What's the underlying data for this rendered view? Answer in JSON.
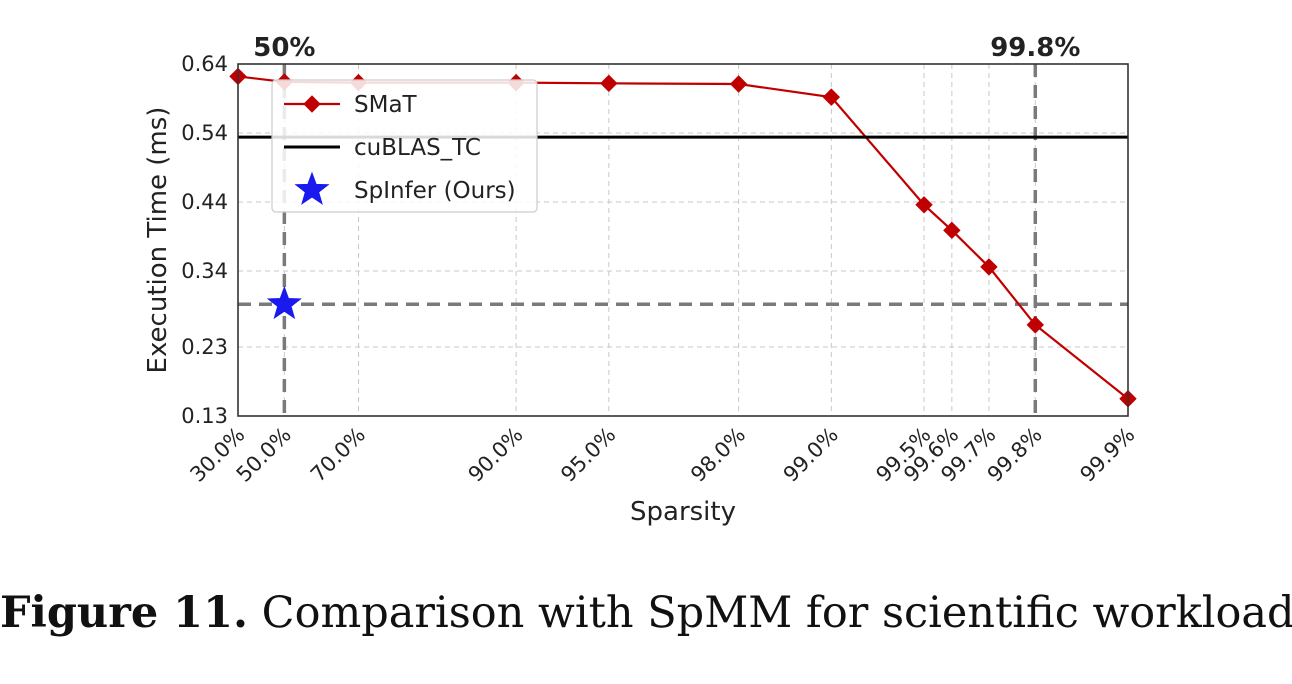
{
  "chart_data": {
    "type": "line",
    "categories": [
      "30.0%",
      "50.0%",
      "70.0%",
      "90.0%",
      "95.0%",
      "98.0%",
      "99.0%",
      "99.5%",
      "99.6%",
      "99.7%",
      "99.8%",
      "99.9%"
    ],
    "x_positions": [
      0.0,
      0.5,
      1.3,
      3.0,
      4.0,
      5.4,
      6.4,
      7.4,
      7.7,
      8.1,
      8.6,
      9.6
    ],
    "series": [
      {
        "name": "SMaT",
        "type": "line",
        "color": "#c00000",
        "marker": "diamond",
        "values": [
          0.622,
          0.614,
          0.613,
          0.613,
          0.612,
          0.611,
          0.592,
          0.436,
          0.399,
          0.346,
          0.262,
          0.155
        ]
      },
      {
        "name": "cuBLAS_TC",
        "type": "hline",
        "color": "#000000",
        "value": 0.534
      },
      {
        "name": "SpInfer (Ours)",
        "type": "point",
        "color": "#1a1aee",
        "marker": "star",
        "x_category": "50.0%",
        "value": 0.292
      }
    ],
    "reference_lines": {
      "vertical": [
        "50.0%",
        "99.8%"
      ],
      "horizontal": 0.292
    },
    "annotations": [
      "50%",
      "99.8%"
    ],
    "xlabel": "Sparsity",
    "ylabel": "Execution Time (ms)",
    "yticks": [
      0.13,
      0.23,
      0.34,
      0.44,
      0.54,
      0.64
    ],
    "ytick_labels": [
      "0.13",
      "0.23",
      "0.34",
      "0.44",
      "0.54",
      "0.64"
    ],
    "ylim": [
      0.13,
      0.64
    ],
    "grid": true,
    "legend_position": "upper-left"
  },
  "caption": {
    "label": "Figure 11.",
    "text": "Comparison with SpMM for scientific workloads."
  }
}
